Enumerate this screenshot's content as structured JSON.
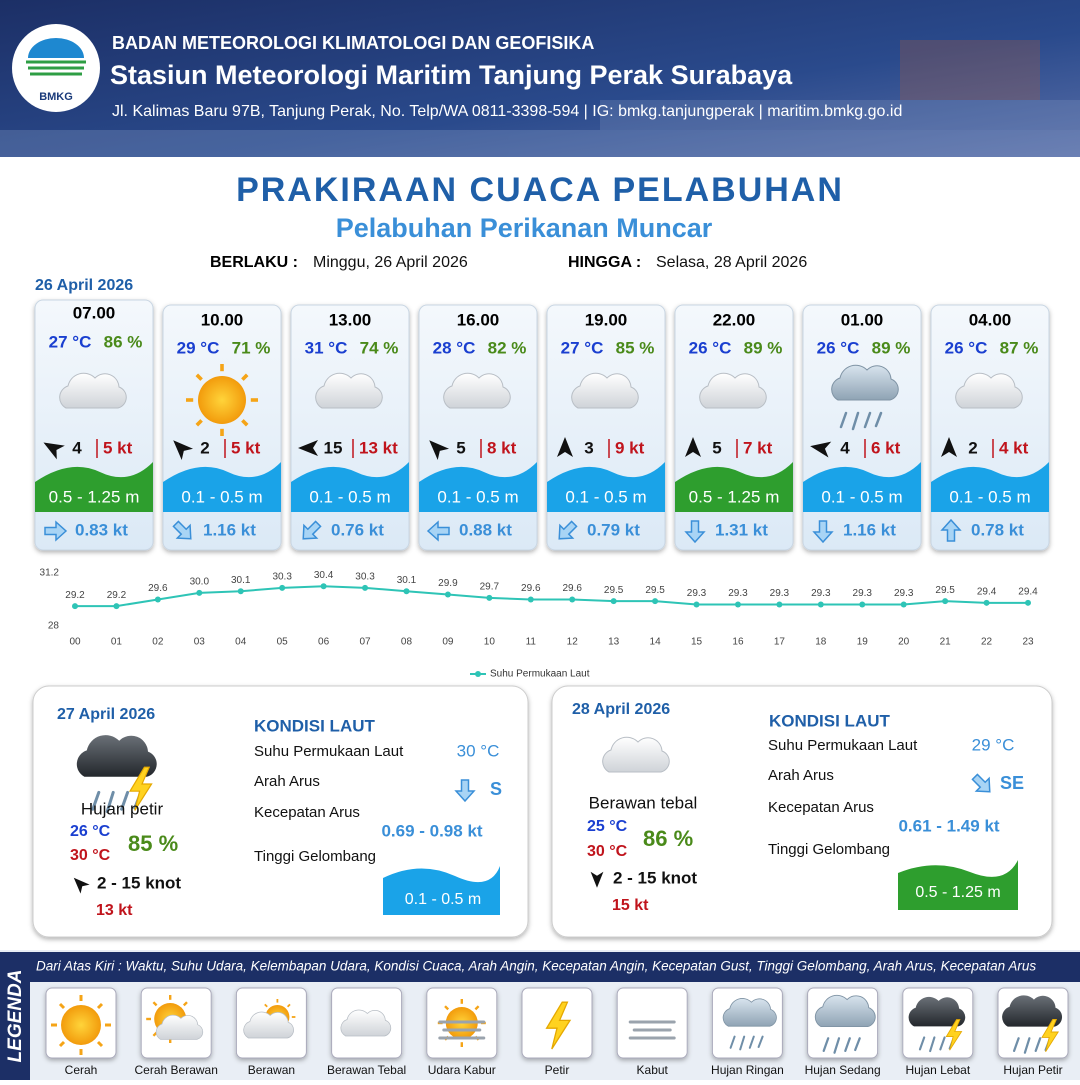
{
  "header": {
    "logo_text": "BMKG",
    "org": "BADAN METEOROLOGI KLIMATOLOGI DAN GEOFISIKA",
    "station": "Stasiun Meteorologi Maritim Tanjung Perak Surabaya",
    "address": "Jl. Kalimas Baru 97B, Tanjung Perak, No. Telp/WA 0811-3398-594 | IG: bmkg.tanjungperak | maritim.bmkg.go.id"
  },
  "title": "PRAKIRAAN CUACA PELABUHAN",
  "subtitle": "Pelabuhan Perikanan Muncar",
  "validity": {
    "from_label": "BERLAKU :",
    "from": "Minggu, 26 April 2026",
    "to_label": "HINGGA :",
    "to": "Selasa, 28 April 2026"
  },
  "day1": {
    "date": "26 April 2026",
    "forecasts": [
      {
        "time": "07.00",
        "temp": "27 °C",
        "humidity": "86 %",
        "wind": "4",
        "gust": "5 kt",
        "wave": "0.5 - 1.25 m",
        "current": "0.83 kt"
      },
      {
        "time": "10.00",
        "temp": "29 °C",
        "humidity": "71 %",
        "wind": "2",
        "gust": "5 kt",
        "wave": "0.1 - 0.5 m",
        "current": "1.16 kt"
      },
      {
        "time": "13.00",
        "temp": "31 °C",
        "humidity": "74 %",
        "wind": "15",
        "gust": "13 kt",
        "wave": "0.1 - 0.5 m",
        "current": "0.76 kt"
      },
      {
        "time": "16.00",
        "temp": "28 °C",
        "humidity": "82 %",
        "wind": "5",
        "gust": "8 kt",
        "wave": "0.1 - 0.5 m",
        "current": "0.88 kt"
      },
      {
        "time": "19.00",
        "temp": "27 °C",
        "humidity": "85 %",
        "wind": "3",
        "gust": "9 kt",
        "wave": "0.1 - 0.5 m",
        "current": "0.79 kt"
      },
      {
        "time": "22.00",
        "temp": "26 °C",
        "humidity": "89 %",
        "wind": "5",
        "gust": "7 kt",
        "wave": "0.5 - 1.25 m",
        "current": "1.31 kt"
      },
      {
        "time": "01.00",
        "temp": "26 °C",
        "humidity": "89 %",
        "wind": "4",
        "gust": "6 kt",
        "wave": "0.1 - 0.5 m",
        "current": "1.16 kt"
      },
      {
        "time": "04.00",
        "temp": "26 °C",
        "humidity": "87 %",
        "wind": "2",
        "gust": "4 kt",
        "wave": "0.1 - 0.5 m",
        "current": "0.78 kt"
      }
    ]
  },
  "chart_data": {
    "type": "line",
    "categories": [
      "00",
      "01",
      "02",
      "03",
      "04",
      "05",
      "06",
      "07",
      "08",
      "09",
      "10",
      "11",
      "12",
      "13",
      "14",
      "15",
      "16",
      "17",
      "18",
      "19",
      "20",
      "21",
      "22",
      "23"
    ],
    "series": [
      {
        "name": "Suhu Permukaan Laut",
        "color": "#2ec4b6",
        "values": [
          29.2,
          29.2,
          29.6,
          30.0,
          30.1,
          30.3,
          30.4,
          30.3,
          30.1,
          29.9,
          29.7,
          29.6,
          29.6,
          29.5,
          29.5,
          29.3,
          29.3,
          29.3,
          29.3,
          29.3,
          29.3,
          29.5,
          29.4,
          29.4
        ],
        "value_labels": [
          "29.2",
          "29.2",
          "29.6",
          "30.0",
          "30.1",
          "30.3",
          "30.4",
          "30.3",
          "30.1",
          "29.9",
          "29.7",
          "29.6",
          "29.6",
          "29.5",
          "29.5",
          "29.3",
          "29.3",
          "29.3",
          "29.3",
          "29.3",
          "29.3",
          "29.5",
          "29.4",
          "29.4"
        ]
      }
    ],
    "ylim": [
      28,
      31.2
    ],
    "yticks": [
      28,
      31.2
    ],
    "grid": false
  },
  "day2": {
    "date": "27 April 2026",
    "condition": "Hujan petir",
    "temp_min": "26 °C",
    "temp_max": "30 °C",
    "humidity": "85 %",
    "wind": "2 - 15 knot",
    "gust": "13 kt",
    "sea": {
      "heading": "KONDISI LAUT",
      "sst_label": "Suhu Permukaan Laut",
      "sst": "30 °C",
      "dir_label": "Arah Arus",
      "dir": "S",
      "speed_label": "Kecepatan Arus",
      "speed": "0.69 - 0.98 kt",
      "wave_label": "Tinggi Gelombang",
      "wave": "0.1 - 0.5 m"
    }
  },
  "day3": {
    "date": "28 April 2026",
    "condition": "Berawan tebal",
    "temp_min": "25 °C",
    "temp_max": "30 °C",
    "humidity": "86 %",
    "wind": "2 - 15 knot",
    "gust": "15 kt",
    "sea": {
      "heading": "KONDISI LAUT",
      "sst_label": "Suhu Permukaan Laut",
      "sst": "29 °C",
      "dir_label": "Arah Arus",
      "dir": "SE",
      "speed_label": "Kecepatan Arus",
      "speed": "0.61 - 1.49 kt",
      "wave_label": "Tinggi Gelombang",
      "wave": "0.5 - 1.25 m"
    }
  },
  "legend": {
    "title": "LEGENDA",
    "description": "Dari Atas Kiri : Waktu, Suhu Udara, Kelembapan Udara, Kondisi Cuaca, Arah Angin, Kecepatan Angin, Kecepatan Gust, Tinggi Gelombang, Arah Arus, Kecepatan Arus",
    "items": [
      "Cerah",
      "Cerah Berawan",
      "Berawan",
      "Berawan Tebal",
      "Udara Kabur",
      "Petir",
      "Kabut",
      "Hujan Ringan",
      "Hujan Sedang",
      "Hujan Lebat",
      "Hujan Petir"
    ]
  }
}
